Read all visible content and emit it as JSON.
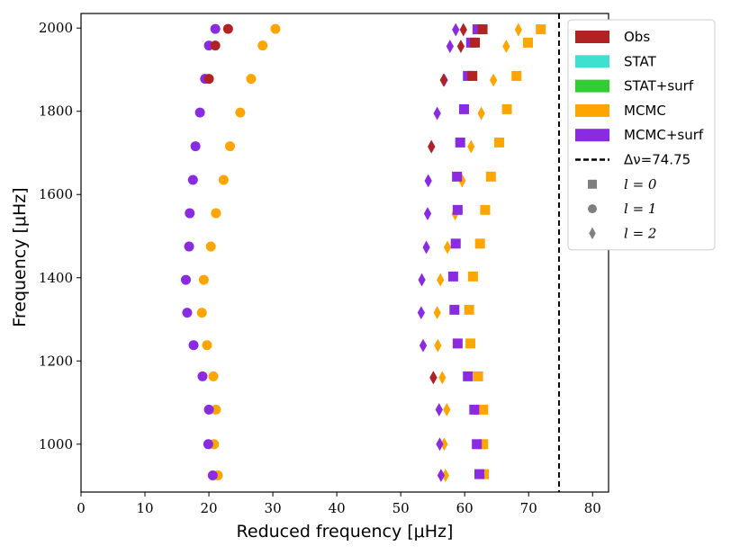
{
  "chart_data": {
    "type": "scatter",
    "title": "",
    "xlabel": "Reduced frequency [μHz]",
    "ylabel": "Frequency [μHz]",
    "xlim": [
      0,
      82.5
    ],
    "ylim": [
      885,
      2035
    ],
    "xticks": [
      0,
      10,
      20,
      30,
      40,
      50,
      60,
      70,
      80
    ],
    "yticks": [
      1000,
      1200,
      1400,
      1600,
      1800,
      2000
    ],
    "delta_nu": 74.75,
    "legend_position": "top-right-outside",
    "legend": [
      {
        "label": "Obs",
        "kind": "patch",
        "color": "#b22222"
      },
      {
        "label": "STAT",
        "kind": "patch",
        "color": "#40e0d0"
      },
      {
        "label": "STAT+surf",
        "kind": "patch",
        "color": "#32cd32"
      },
      {
        "label": "MCMC",
        "kind": "patch",
        "color": "#ffa500"
      },
      {
        "label": "MCMC+surf",
        "kind": "patch",
        "color": "#8a2be2"
      },
      {
        "label": "Δν=74.75",
        "kind": "dashed"
      },
      {
        "label": "l = 0",
        "kind": "square"
      },
      {
        "label": "l = 1",
        "kind": "circle"
      },
      {
        "label": "l = 2",
        "kind": "diamond"
      }
    ],
    "series": [
      {
        "name": "MCMC",
        "color": "#ffa500",
        "points": [
          {
            "l": 0,
            "x": 63.0,
            "y": 928
          },
          {
            "l": 0,
            "x": 62.9,
            "y": 1000
          },
          {
            "l": 0,
            "x": 62.9,
            "y": 1083
          },
          {
            "l": 0,
            "x": 62.1,
            "y": 1163
          },
          {
            "l": 0,
            "x": 60.9,
            "y": 1242
          },
          {
            "l": 0,
            "x": 60.7,
            "y": 1323
          },
          {
            "l": 0,
            "x": 61.3,
            "y": 1403
          },
          {
            "l": 0,
            "x": 62.4,
            "y": 1482
          },
          {
            "l": 0,
            "x": 63.2,
            "y": 1563
          },
          {
            "l": 0,
            "x": 64.1,
            "y": 1643
          },
          {
            "l": 0,
            "x": 65.4,
            "y": 1725
          },
          {
            "l": 0,
            "x": 66.6,
            "y": 1805
          },
          {
            "l": 0,
            "x": 68.1,
            "y": 1885
          },
          {
            "l": 0,
            "x": 69.9,
            "y": 1965
          },
          {
            "l": 0,
            "x": 71.9,
            "y": 1997
          },
          {
            "l": 1,
            "x": 21.4,
            "y": 925
          },
          {
            "l": 1,
            "x": 20.8,
            "y": 1000
          },
          {
            "l": 1,
            "x": 21.1,
            "y": 1083
          },
          {
            "l": 1,
            "x": 20.7,
            "y": 1163
          },
          {
            "l": 1,
            "x": 19.7,
            "y": 1238
          },
          {
            "l": 1,
            "x": 18.9,
            "y": 1316
          },
          {
            "l": 1,
            "x": 19.2,
            "y": 1395
          },
          {
            "l": 1,
            "x": 20.3,
            "y": 1475
          },
          {
            "l": 1,
            "x": 21.1,
            "y": 1555
          },
          {
            "l": 1,
            "x": 22.3,
            "y": 1635
          },
          {
            "l": 1,
            "x": 23.3,
            "y": 1716
          },
          {
            "l": 1,
            "x": 24.9,
            "y": 1797
          },
          {
            "l": 1,
            "x": 26.6,
            "y": 1878
          },
          {
            "l": 1,
            "x": 28.4,
            "y": 1958
          },
          {
            "l": 1,
            "x": 30.4,
            "y": 1998
          },
          {
            "l": 2,
            "x": 57.0,
            "y": 925
          },
          {
            "l": 2,
            "x": 56.8,
            "y": 1000
          },
          {
            "l": 2,
            "x": 57.2,
            "y": 1083
          },
          {
            "l": 2,
            "x": 56.5,
            "y": 1160
          },
          {
            "l": 2,
            "x": 55.8,
            "y": 1237
          },
          {
            "l": 2,
            "x": 55.7,
            "y": 1316
          },
          {
            "l": 2,
            "x": 56.2,
            "y": 1395
          },
          {
            "l": 2,
            "x": 57.3,
            "y": 1473
          },
          {
            "l": 2,
            "x": 58.5,
            "y": 1554
          },
          {
            "l": 2,
            "x": 59.6,
            "y": 1633
          },
          {
            "l": 2,
            "x": 61.0,
            "y": 1715
          },
          {
            "l": 2,
            "x": 62.6,
            "y": 1795
          },
          {
            "l": 2,
            "x": 64.5,
            "y": 1875
          },
          {
            "l": 2,
            "x": 66.5,
            "y": 1956
          },
          {
            "l": 2,
            "x": 68.4,
            "y": 1996
          }
        ]
      },
      {
        "name": "MCMC+surf",
        "color": "#8a2be2",
        "points": [
          {
            "l": 0,
            "x": 62.3,
            "y": 928
          },
          {
            "l": 0,
            "x": 61.9,
            "y": 1000
          },
          {
            "l": 0,
            "x": 61.5,
            "y": 1083
          },
          {
            "l": 0,
            "x": 60.5,
            "y": 1163
          },
          {
            "l": 0,
            "x": 58.9,
            "y": 1242
          },
          {
            "l": 0,
            "x": 58.4,
            "y": 1323
          },
          {
            "l": 0,
            "x": 58.2,
            "y": 1403
          },
          {
            "l": 0,
            "x": 58.6,
            "y": 1482
          },
          {
            "l": 0,
            "x": 58.9,
            "y": 1563
          },
          {
            "l": 0,
            "x": 58.8,
            "y": 1643
          },
          {
            "l": 0,
            "x": 59.3,
            "y": 1725
          },
          {
            "l": 0,
            "x": 59.9,
            "y": 1805
          },
          {
            "l": 0,
            "x": 60.5,
            "y": 1885
          },
          {
            "l": 0,
            "x": 61.0,
            "y": 1965
          },
          {
            "l": 0,
            "x": 62.0,
            "y": 1997
          },
          {
            "l": 1,
            "x": 20.6,
            "y": 925
          },
          {
            "l": 1,
            "x": 19.9,
            "y": 1000
          },
          {
            "l": 1,
            "x": 20.0,
            "y": 1083
          },
          {
            "l": 1,
            "x": 19.0,
            "y": 1163
          },
          {
            "l": 1,
            "x": 17.6,
            "y": 1238
          },
          {
            "l": 1,
            "x": 16.6,
            "y": 1316
          },
          {
            "l": 1,
            "x": 16.4,
            "y": 1395
          },
          {
            "l": 1,
            "x": 16.9,
            "y": 1475
          },
          {
            "l": 1,
            "x": 17.0,
            "y": 1555
          },
          {
            "l": 1,
            "x": 17.5,
            "y": 1635
          },
          {
            "l": 1,
            "x": 17.9,
            "y": 1716
          },
          {
            "l": 1,
            "x": 18.6,
            "y": 1797
          },
          {
            "l": 1,
            "x": 19.4,
            "y": 1878
          },
          {
            "l": 1,
            "x": 20.0,
            "y": 1958
          },
          {
            "l": 1,
            "x": 21.0,
            "y": 1998
          },
          {
            "l": 2,
            "x": 56.3,
            "y": 925
          },
          {
            "l": 2,
            "x": 56.1,
            "y": 1000
          },
          {
            "l": 2,
            "x": 56.0,
            "y": 1083
          },
          {
            "l": 2,
            "x": 55.1,
            "y": 1160
          },
          {
            "l": 2,
            "x": 53.5,
            "y": 1237
          },
          {
            "l": 2,
            "x": 53.2,
            "y": 1316
          },
          {
            "l": 2,
            "x": 53.3,
            "y": 1395
          },
          {
            "l": 2,
            "x": 54.0,
            "y": 1473
          },
          {
            "l": 2,
            "x": 54.2,
            "y": 1554
          },
          {
            "l": 2,
            "x": 54.3,
            "y": 1633
          },
          {
            "l": 2,
            "x": 54.8,
            "y": 1715
          },
          {
            "l": 2,
            "x": 55.7,
            "y": 1795
          },
          {
            "l": 2,
            "x": 56.8,
            "y": 1875
          },
          {
            "l": 2,
            "x": 57.7,
            "y": 1956
          },
          {
            "l": 2,
            "x": 58.6,
            "y": 1996
          }
        ]
      },
      {
        "name": "Obs",
        "color": "#b22222",
        "points": [
          {
            "l": 0,
            "x": 61.2,
            "y": 1885
          },
          {
            "l": 0,
            "x": 61.6,
            "y": 1965
          },
          {
            "l": 0,
            "x": 62.8,
            "y": 1997
          },
          {
            "l": 1,
            "x": 20.0,
            "y": 1878
          },
          {
            "l": 1,
            "x": 21.0,
            "y": 1958
          },
          {
            "l": 1,
            "x": 23.0,
            "y": 1998
          },
          {
            "l": 2,
            "x": 55.1,
            "y": 1160
          },
          {
            "l": 2,
            "x": 54.8,
            "y": 1715
          },
          {
            "l": 2,
            "x": 56.7,
            "y": 1875
          },
          {
            "l": 2,
            "x": 59.4,
            "y": 1956
          },
          {
            "l": 2,
            "x": 59.8,
            "y": 1996
          }
        ]
      }
    ]
  }
}
